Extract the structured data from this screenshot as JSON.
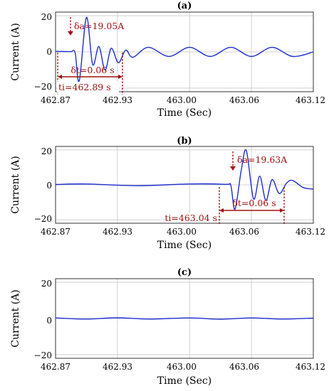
{
  "chart_data": [
    {
      "type": "line",
      "panel_label": "(a)",
      "xlabel": "Time (Sec)",
      "ylabel": "Current (A)",
      "xlim": [
        462.87,
        463.12
      ],
      "ylim": [
        -22,
        22
      ],
      "x_ticks": [
        "462.87",
        "462.93",
        "463.00",
        "463.06",
        "463.12"
      ],
      "y_ticks": [
        "20",
        "0",
        "−20"
      ],
      "grid": true,
      "series": [
        {
          "x": [
            462.87,
            462.88,
            462.885,
            462.889,
            462.893,
            462.9,
            462.906,
            462.912,
            462.918,
            462.924,
            462.931,
            462.938,
            462.945,
            462.96,
            462.98,
            463.0,
            463.02,
            463.04,
            463.06,
            463.08,
            463.1,
            463.12
          ],
          "y": [
            0.3,
            0.2,
            0.1,
            -0.5,
            -16,
            19.05,
            -7,
            3,
            -10,
            2,
            -6,
            1,
            -3,
            2.5,
            -2.5,
            2.5,
            -2.5,
            2.5,
            -2.5,
            2.5,
            -2.5,
            0
          ]
        }
      ],
      "annotations": [
        {
          "text": "δa=19.05A"
        },
        {
          "text": "δt=0.06 s"
        },
        {
          "text": "ti=462.89 s"
        }
      ]
    },
    {
      "type": "line",
      "panel_label": "(b)",
      "xlabel": "Time (Sec)",
      "ylabel": "Current (A)",
      "xlim": [
        462.87,
        463.12
      ],
      "ylim": [
        -22,
        22
      ],
      "x_ticks": [
        "462.87",
        "462.93",
        "463.00",
        "463.06",
        "463.12"
      ],
      "y_ticks": [
        "20",
        "0",
        "−20"
      ],
      "grid": true,
      "series": [
        {
          "x": [
            462.87,
            462.9,
            462.95,
            463.0,
            463.035,
            463.04,
            463.044,
            463.05,
            463.055,
            463.062,
            463.068,
            463.074,
            463.08,
            463.087,
            463.094,
            463.1,
            463.11,
            463.12
          ],
          "y": [
            0.2,
            0.5,
            -0.5,
            0.5,
            0.3,
            -0.5,
            -14,
            8,
            19.63,
            -8,
            5,
            -9,
            3,
            -5,
            1,
            2.5,
            -1.5,
            -2.5
          ]
        }
      ],
      "annotations": [
        {
          "text": "δa=19.63A"
        },
        {
          "text": "δt=0.06 s"
        },
        {
          "text": "ti=463.04 s"
        }
      ]
    },
    {
      "type": "line",
      "panel_label": "(c)",
      "xlabel": "Time (Sec)",
      "ylabel": "Current (A)",
      "xlim": [
        462.87,
        463.12
      ],
      "ylim": [
        -22,
        22
      ],
      "x_ticks": [
        "462.87",
        "462.93",
        "463.00",
        "463.06",
        "463.12"
      ],
      "y_ticks": [
        "20",
        "0",
        "−20"
      ],
      "grid": true,
      "series": [
        {
          "x": [
            462.87,
            462.9,
            462.93,
            462.96,
            463.0,
            463.03,
            463.06,
            463.09,
            463.12
          ],
          "y": [
            0.3,
            -0.3,
            0.4,
            -0.3,
            0.3,
            -0.4,
            0.3,
            -0.3,
            0.2
          ]
        }
      ],
      "annotations": []
    }
  ]
}
